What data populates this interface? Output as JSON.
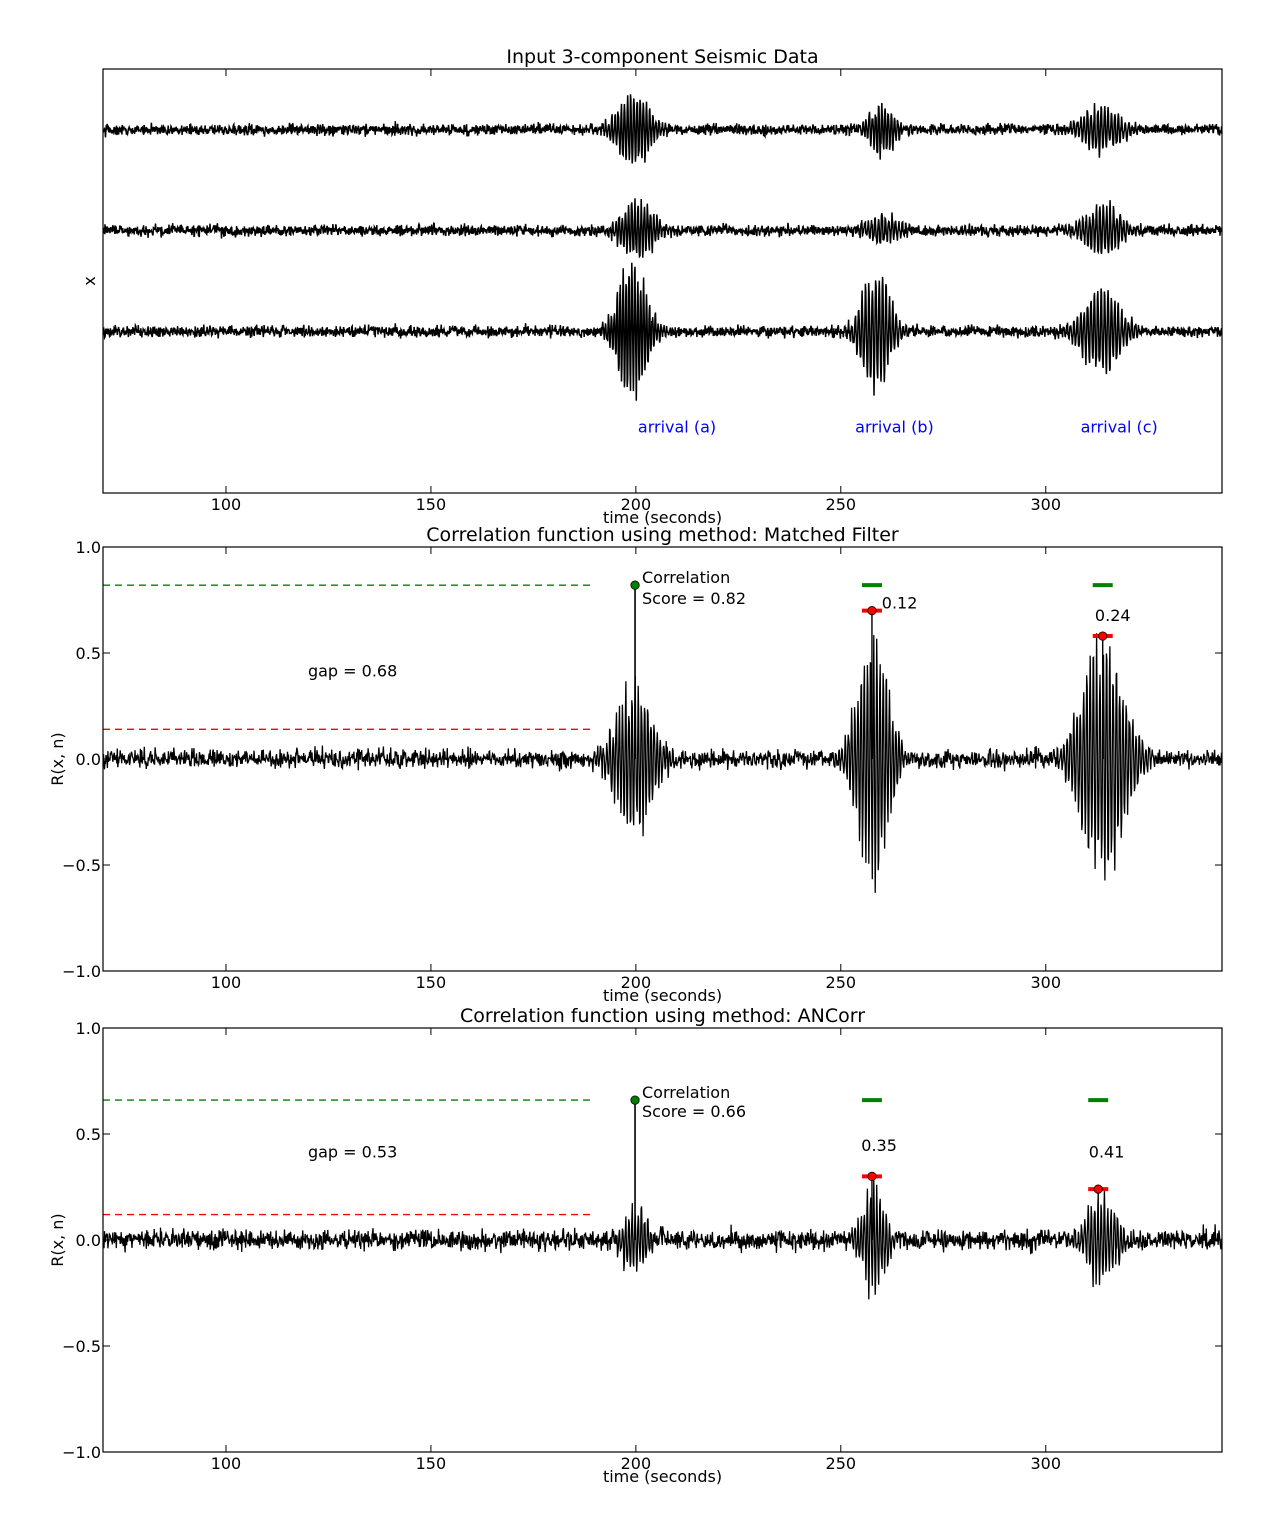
{
  "chart_data": [
    {
      "type": "line",
      "title": "Input 3-component Seismic Data",
      "xlabel": "time (seconds)",
      "ylabel": "x",
      "xlim": [
        70,
        343
      ],
      "x_ticks": [
        100,
        150,
        200,
        250,
        300
      ],
      "y_ticks_shown": false,
      "grid": false,
      "series": [
        {
          "offset": 1.0,
          "noise": 0.06,
          "events": [
            {
              "t": 199.5,
              "amp": 0.38,
              "dur": 5.0,
              "freq": 1.3
            },
            {
              "t": 260.0,
              "amp": 0.28,
              "dur": 4.0,
              "freq": 1.3
            },
            {
              "t": 313.5,
              "amp": 0.25,
              "dur": 6.0,
              "freq": 1.2
            }
          ]
        },
        {
          "offset": 0.0,
          "noise": 0.06,
          "events": [
            {
              "t": 200.5,
              "amp": 0.3,
              "dur": 5.0,
              "freq": 1.3
            },
            {
              "t": 260.0,
              "amp": 0.16,
              "dur": 5.0,
              "freq": 1.2
            },
            {
              "t": 314.0,
              "amp": 0.25,
              "dur": 6.0,
              "freq": 1.2
            }
          ]
        },
        {
          "offset": -1.0,
          "noise": 0.06,
          "events": [
            {
              "t": 199.0,
              "amp": 0.75,
              "dur": 4.5,
              "freq": 1.4
            },
            {
              "t": 258.5,
              "amp": 0.65,
              "dur": 4.5,
              "freq": 1.2
            },
            {
              "t": 313.5,
              "amp": 0.45,
              "dur": 6.0,
              "freq": 1.2
            }
          ]
        }
      ],
      "annotations": [
        {
          "text": "arrival (a)",
          "x": 200.5,
          "y": -2.0,
          "color": "#0000ff"
        },
        {
          "text": "arrival (b)",
          "x": 253.5,
          "y": -2.0,
          "color": "#0000ff"
        },
        {
          "text": "arrival (c)",
          "x": 308.5,
          "y": -2.0,
          "color": "#0000ff"
        }
      ]
    },
    {
      "type": "line",
      "title": "Correlation function using method: Matched Filter",
      "xlabel": "time (seconds)",
      "ylabel": "R(x, n)",
      "xlim": [
        70,
        343
      ],
      "ylim": [
        -1.0,
        1.0
      ],
      "x_ticks": [
        100,
        150,
        200,
        250,
        300
      ],
      "y_ticks": [
        1.0,
        0.5,
        0.0,
        -0.5,
        -1.0
      ],
      "y_tick_labels": [
        "1.0",
        "0.5",
        "0.0",
        "−0.5",
        "−1.0"
      ],
      "grid": false,
      "signal": {
        "noise": 0.04,
        "events": [
          {
            "t": 199.8,
            "amp": 0.32,
            "dur": 6.0,
            "freq": 1.3
          },
          {
            "t": 258.0,
            "amp": 0.52,
            "dur": 5.0,
            "freq": 1.3
          },
          {
            "t": 314.0,
            "amp": 0.52,
            "dur": 7.0,
            "freq": 1.25
          }
        ]
      },
      "peak": {
        "x": 199.8,
        "y": 0.82
      },
      "secondary_peaks": [
        {
          "x": 257.6,
          "y": 0.7,
          "green_y": 0.82
        },
        {
          "x": 313.9,
          "y": 0.58,
          "green_y": 0.82
        }
      ],
      "reference_lines": [
        {
          "y": 0.82,
          "x0": 70,
          "x1": 190,
          "color": "#008000"
        },
        {
          "y": 0.14,
          "x0": 70,
          "x1": 190,
          "color": "#ff0000"
        }
      ],
      "annotations": [
        {
          "text": "Correlation",
          "x": 201.5,
          "y": 0.83
        },
        {
          "text": "Score = 0.82",
          "x": 201.5,
          "y": 0.73
        },
        {
          "text": "0.12",
          "x": 260.0,
          "y": 0.71
        },
        {
          "text": "0.24",
          "x": 312.0,
          "y": 0.65
        },
        {
          "text": "gap = 0.68",
          "x": 120.0,
          "y": 0.39
        }
      ]
    },
    {
      "type": "line",
      "title": "Correlation function using method: ANCorr",
      "xlabel": "time (seconds)",
      "ylabel": "R(x, n)",
      "xlim": [
        70,
        343
      ],
      "ylim": [
        -1.0,
        1.0
      ],
      "x_ticks": [
        100,
        150,
        200,
        250,
        300
      ],
      "y_ticks": [
        1.0,
        0.5,
        0.0,
        -0.5,
        -1.0
      ],
      "y_tick_labels": [
        "1.0",
        "0.5",
        "0.0",
        "−0.5",
        "−1.0"
      ],
      "grid": false,
      "signal": {
        "noise": 0.045,
        "events": [
          {
            "t": 199.8,
            "amp": 0.15,
            "dur": 4.0,
            "freq": 1.3
          },
          {
            "t": 258.0,
            "amp": 0.22,
            "dur": 4.0,
            "freq": 1.3
          },
          {
            "t": 313.5,
            "amp": 0.18,
            "dur": 5.0,
            "freq": 1.25
          }
        ]
      },
      "peak": {
        "x": 199.8,
        "y": 0.66
      },
      "secondary_peaks": [
        {
          "x": 257.6,
          "y": 0.3,
          "green_y": 0.66
        },
        {
          "x": 312.8,
          "y": 0.24,
          "green_y": 0.66
        }
      ],
      "reference_lines": [
        {
          "y": 0.66,
          "x0": 70,
          "x1": 190,
          "color": "#008000"
        },
        {
          "y": 0.12,
          "x0": 70,
          "x1": 190,
          "color": "#ff0000"
        }
      ],
      "annotations": [
        {
          "text": "Correlation",
          "x": 201.5,
          "y": 0.67
        },
        {
          "text": "Score = 0.66",
          "x": 201.5,
          "y": 0.58
        },
        {
          "text": "0.35",
          "x": 255.0,
          "y": 0.42
        },
        {
          "text": "0.41",
          "x": 310.5,
          "y": 0.39
        },
        {
          "text": "gap = 0.53",
          "x": 120.0,
          "y": 0.39
        }
      ]
    }
  ]
}
